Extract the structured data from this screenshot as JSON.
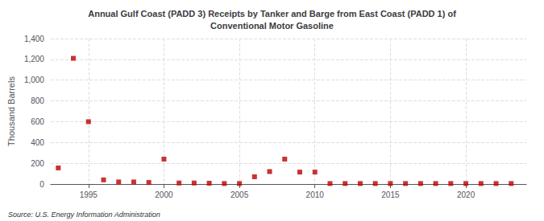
{
  "chart_data": {
    "type": "scatter",
    "title": "Annual Gulf Coast (PADD 3) Receipts by Tanker and Barge from East Coast (PADD 1) of\nConventional Motor Gasoline",
    "ylabel": "Thousand Barrels",
    "source": "Source: U.S. Energy Information Administration",
    "x": [
      1993,
      1994,
      1995,
      1996,
      1997,
      1998,
      1999,
      2000,
      2001,
      2002,
      2003,
      2004,
      2005,
      2006,
      2007,
      2008,
      2009,
      2010,
      2011,
      2012,
      2013,
      2014,
      2015,
      2016,
      2017,
      2018,
      2019,
      2020,
      2021,
      2022,
      2023
    ],
    "values": [
      155,
      1210,
      600,
      40,
      20,
      20,
      15,
      240,
      10,
      10,
      8,
      5,
      5,
      70,
      120,
      240,
      115,
      115,
      5,
      5,
      5,
      5,
      5,
      5,
      5,
      5,
      5,
      5,
      5,
      5,
      5
    ],
    "color": "#bb0000",
    "marker": "square",
    "xlim": [
      1992.5,
      2024
    ],
    "ylim": [
      0,
      1400
    ],
    "xticks": [
      1995,
      2000,
      2005,
      2010,
      2015,
      2020
    ],
    "yticks": [
      0,
      200,
      400,
      600,
      800,
      {
        "value": 1000,
        "label": "1,000"
      },
      {
        "value": 1200,
        "label": "1,200"
      },
      {
        "value": 1400,
        "label": "1,400"
      }
    ],
    "grid": true
  }
}
